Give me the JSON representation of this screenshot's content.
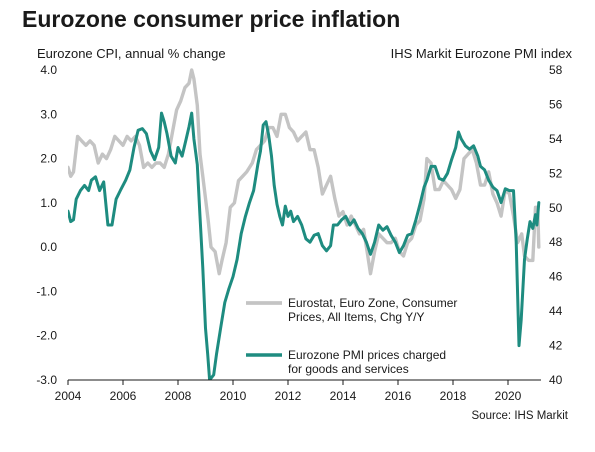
{
  "title": "Eurozone consumer price inflation",
  "source": "Source: IHS Markit",
  "colors": {
    "cpi": "#c4c4c4",
    "pmi": "#1e8c80",
    "axis": "#1a1a1a",
    "text": "#1a1a1a"
  },
  "chart_data": {
    "type": "line",
    "title": "Eurozone consumer price inflation",
    "left_axis": {
      "label": "Eurozone CPI, annual % change",
      "ylim": [
        -3.0,
        4.0
      ],
      "ticks": [
        4.0,
        3.0,
        2.0,
        1.0,
        0.0,
        -1.0,
        -2.0,
        -3.0
      ],
      "tick_labels": [
        "4.0",
        "3.0",
        "2.0",
        "1.0",
        "0.0",
        "-1.0",
        "-2.0",
        "-3.0"
      ]
    },
    "right_axis": {
      "label": "IHS Markit Eurozone PMI index",
      "ylim": [
        40,
        58
      ],
      "ticks": [
        58,
        56,
        54,
        52,
        50,
        48,
        46,
        44,
        42,
        40
      ],
      "tick_labels": [
        "58",
        "56",
        "54",
        "52",
        "50",
        "48",
        "46",
        "44",
        "42",
        "40"
      ]
    },
    "x_axis": {
      "xlim": [
        2004.0,
        2021.2
      ],
      "ticks": [
        2004,
        2006,
        2008,
        2010,
        2012,
        2014,
        2016,
        2018,
        2020
      ],
      "tick_labels": [
        "2004",
        "2006",
        "2008",
        "2010",
        "2012",
        "2014",
        "2016",
        "2018",
        "2020"
      ]
    },
    "grid": false,
    "legend_position": "bottom-right",
    "series": [
      {
        "name": "Eurostat, Euro Zone, Consumer Prices, All Items, Chg Y/Y",
        "legend_lines": [
          "Eurostat, Euro Zone, Consumer",
          "Prices, All Items, Chg Y/Y"
        ],
        "axis": "left",
        "points": [
          [
            2004.0,
            1.8
          ],
          [
            2004.1,
            1.6
          ],
          [
            2004.2,
            1.7
          ],
          [
            2004.35,
            2.5
          ],
          [
            2004.5,
            2.4
          ],
          [
            2004.65,
            2.3
          ],
          [
            2004.8,
            2.4
          ],
          [
            2004.95,
            2.3
          ],
          [
            2005.1,
            1.9
          ],
          [
            2005.25,
            2.1
          ],
          [
            2005.4,
            2.0
          ],
          [
            2005.55,
            2.2
          ],
          [
            2005.7,
            2.5
          ],
          [
            2005.85,
            2.4
          ],
          [
            2006.0,
            2.3
          ],
          [
            2006.15,
            2.5
          ],
          [
            2006.3,
            2.4
          ],
          [
            2006.45,
            2.5
          ],
          [
            2006.6,
            2.3
          ],
          [
            2006.75,
            1.8
          ],
          [
            2006.9,
            1.9
          ],
          [
            2007.05,
            1.8
          ],
          [
            2007.2,
            1.9
          ],
          [
            2007.35,
            1.9
          ],
          [
            2007.5,
            1.8
          ],
          [
            2007.65,
            2.1
          ],
          [
            2007.8,
            2.6
          ],
          [
            2007.95,
            3.1
          ],
          [
            2008.1,
            3.3
          ],
          [
            2008.25,
            3.6
          ],
          [
            2008.4,
            3.7
          ],
          [
            2008.5,
            4.0
          ],
          [
            2008.58,
            3.8
          ],
          [
            2008.7,
            3.2
          ],
          [
            2008.8,
            2.1
          ],
          [
            2008.9,
            1.6
          ],
          [
            2009.0,
            1.1
          ],
          [
            2009.1,
            0.6
          ],
          [
            2009.2,
            0.0
          ],
          [
            2009.35,
            -0.1
          ],
          [
            2009.5,
            -0.6
          ],
          [
            2009.6,
            -0.3
          ],
          [
            2009.75,
            0.1
          ],
          [
            2009.9,
            0.9
          ],
          [
            2010.05,
            1.0
          ],
          [
            2010.2,
            1.5
          ],
          [
            2010.35,
            1.6
          ],
          [
            2010.5,
            1.7
          ],
          [
            2010.7,
            1.9
          ],
          [
            2010.85,
            2.2
          ],
          [
            2011.0,
            2.3
          ],
          [
            2011.15,
            2.4
          ],
          [
            2011.3,
            2.7
          ],
          [
            2011.45,
            2.7
          ],
          [
            2011.6,
            2.5
          ],
          [
            2011.75,
            3.0
          ],
          [
            2011.9,
            3.0
          ],
          [
            2012.05,
            2.7
          ],
          [
            2012.2,
            2.6
          ],
          [
            2012.35,
            2.4
          ],
          [
            2012.5,
            2.5
          ],
          [
            2012.65,
            2.6
          ],
          [
            2012.8,
            2.2
          ],
          [
            2012.95,
            2.2
          ],
          [
            2013.1,
            1.8
          ],
          [
            2013.25,
            1.2
          ],
          [
            2013.4,
            1.4
          ],
          [
            2013.55,
            1.6
          ],
          [
            2013.7,
            1.1
          ],
          [
            2013.85,
            0.7
          ],
          [
            2014.0,
            0.8
          ],
          [
            2014.15,
            0.5
          ],
          [
            2014.3,
            0.7
          ],
          [
            2014.45,
            0.5
          ],
          [
            2014.6,
            0.3
          ],
          [
            2014.75,
            0.4
          ],
          [
            2014.9,
            -0.2
          ],
          [
            2015.0,
            -0.6
          ],
          [
            2015.15,
            -0.1
          ],
          [
            2015.3,
            0.3
          ],
          [
            2015.45,
            0.2
          ],
          [
            2015.6,
            0.1
          ],
          [
            2015.75,
            0.1
          ],
          [
            2015.9,
            0.2
          ],
          [
            2016.05,
            -0.1
          ],
          [
            2016.2,
            -0.2
          ],
          [
            2016.35,
            0.1
          ],
          [
            2016.5,
            0.2
          ],
          [
            2016.65,
            0.5
          ],
          [
            2016.8,
            0.6
          ],
          [
            2016.95,
            1.1
          ],
          [
            2017.05,
            2.0
          ],
          [
            2017.2,
            1.9
          ],
          [
            2017.35,
            1.3
          ],
          [
            2017.5,
            1.3
          ],
          [
            2017.65,
            1.5
          ],
          [
            2017.8,
            1.4
          ],
          [
            2017.95,
            1.3
          ],
          [
            2018.1,
            1.1
          ],
          [
            2018.25,
            1.3
          ],
          [
            2018.4,
            2.0
          ],
          [
            2018.55,
            2.1
          ],
          [
            2018.7,
            2.2
          ],
          [
            2018.85,
            1.9
          ],
          [
            2019.0,
            1.4
          ],
          [
            2019.15,
            1.4
          ],
          [
            2019.3,
            1.7
          ],
          [
            2019.45,
            1.2
          ],
          [
            2019.6,
            1.0
          ],
          [
            2019.75,
            0.7
          ],
          [
            2019.9,
            1.3
          ],
          [
            2020.05,
            1.2
          ],
          [
            2020.2,
            0.7
          ],
          [
            2020.35,
            0.1
          ],
          [
            2020.5,
            0.3
          ],
          [
            2020.6,
            -0.2
          ],
          [
            2020.75,
            -0.3
          ],
          [
            2020.9,
            -0.3
          ],
          [
            2021.0,
            0.9
          ],
          [
            2021.08,
            0.9
          ],
          [
            2021.12,
            0.0
          ]
        ]
      },
      {
        "name": "Eurozone PMI prices charged for goods and services",
        "legend_lines": [
          "Eurozone PMI prices charged",
          "for goods and services"
        ],
        "axis": "right",
        "points": [
          [
            2004.0,
            49.8
          ],
          [
            2004.1,
            49.2
          ],
          [
            2004.2,
            49.3
          ],
          [
            2004.3,
            50.5
          ],
          [
            2004.45,
            51.0
          ],
          [
            2004.6,
            51.3
          ],
          [
            2004.75,
            51.0
          ],
          [
            2004.85,
            51.6
          ],
          [
            2005.0,
            51.8
          ],
          [
            2005.15,
            51.0
          ],
          [
            2005.3,
            51.5
          ],
          [
            2005.45,
            49.0
          ],
          [
            2005.6,
            49.0
          ],
          [
            2005.75,
            50.5
          ],
          [
            2005.9,
            51.0
          ],
          [
            2006.1,
            51.6
          ],
          [
            2006.25,
            52.2
          ],
          [
            2006.4,
            53.5
          ],
          [
            2006.55,
            54.5
          ],
          [
            2006.7,
            54.6
          ],
          [
            2006.85,
            54.3
          ],
          [
            2007.0,
            53.3
          ],
          [
            2007.15,
            52.8
          ],
          [
            2007.3,
            53.5
          ],
          [
            2007.4,
            55.5
          ],
          [
            2007.5,
            55.0
          ],
          [
            2007.6,
            54.3
          ],
          [
            2007.75,
            53.0
          ],
          [
            2007.9,
            52.6
          ],
          [
            2008.0,
            53.5
          ],
          [
            2008.15,
            53.0
          ],
          [
            2008.3,
            54.0
          ],
          [
            2008.4,
            54.7
          ],
          [
            2008.5,
            55.5
          ],
          [
            2008.58,
            54.0
          ],
          [
            2008.7,
            52.5
          ],
          [
            2008.8,
            49.5
          ],
          [
            2008.9,
            46.5
          ],
          [
            2009.0,
            43.0
          ],
          [
            2009.08,
            41.5
          ],
          [
            2009.15,
            40.0
          ],
          [
            2009.3,
            40.3
          ],
          [
            2009.4,
            41.5
          ],
          [
            2009.55,
            43.0
          ],
          [
            2009.7,
            44.5
          ],
          [
            2009.85,
            45.3
          ],
          [
            2010.0,
            46.0
          ],
          [
            2010.15,
            47.0
          ],
          [
            2010.3,
            48.5
          ],
          [
            2010.45,
            49.5
          ],
          [
            2010.6,
            50.3
          ],
          [
            2010.75,
            51.0
          ],
          [
            2010.9,
            52.5
          ],
          [
            2011.0,
            53.3
          ],
          [
            2011.1,
            54.8
          ],
          [
            2011.2,
            55.0
          ],
          [
            2011.3,
            54.2
          ],
          [
            2011.4,
            53.0
          ],
          [
            2011.5,
            51.3
          ],
          [
            2011.6,
            50.2
          ],
          [
            2011.7,
            49.5
          ],
          [
            2011.8,
            49.0
          ],
          [
            2011.9,
            50.1
          ],
          [
            2012.0,
            49.5
          ],
          [
            2012.1,
            49.8
          ],
          [
            2012.2,
            49.2
          ],
          [
            2012.35,
            49.5
          ],
          [
            2012.5,
            49.0
          ],
          [
            2012.65,
            48.2
          ],
          [
            2012.8,
            48.0
          ],
          [
            2012.95,
            48.4
          ],
          [
            2013.1,
            48.5
          ],
          [
            2013.25,
            47.8
          ],
          [
            2013.4,
            47.5
          ],
          [
            2013.55,
            47.8
          ],
          [
            2013.65,
            49.0
          ],
          [
            2013.8,
            49.0
          ],
          [
            2013.95,
            49.3
          ],
          [
            2014.1,
            49.5
          ],
          [
            2014.25,
            49.0
          ],
          [
            2014.4,
            49.3
          ],
          [
            2014.55,
            48.8
          ],
          [
            2014.7,
            48.5
          ],
          [
            2014.85,
            48.0
          ],
          [
            2015.0,
            47.3
          ],
          [
            2015.15,
            48.0
          ],
          [
            2015.3,
            49.0
          ],
          [
            2015.45,
            48.7
          ],
          [
            2015.6,
            48.9
          ],
          [
            2015.75,
            48.4
          ],
          [
            2015.9,
            48.0
          ],
          [
            2016.05,
            47.4
          ],
          [
            2016.2,
            47.8
          ],
          [
            2016.35,
            48.4
          ],
          [
            2016.5,
            48.5
          ],
          [
            2016.65,
            49.3
          ],
          [
            2016.8,
            50.2
          ],
          [
            2016.95,
            51.2
          ],
          [
            2017.05,
            51.6
          ],
          [
            2017.2,
            52.4
          ],
          [
            2017.35,
            52.4
          ],
          [
            2017.5,
            51.7
          ],
          [
            2017.65,
            51.6
          ],
          [
            2017.8,
            52.0
          ],
          [
            2017.95,
            52.8
          ],
          [
            2018.1,
            53.5
          ],
          [
            2018.2,
            54.4
          ],
          [
            2018.3,
            54.0
          ],
          [
            2018.45,
            53.6
          ],
          [
            2018.6,
            53.4
          ],
          [
            2018.75,
            53.6
          ],
          [
            2018.9,
            53.0
          ],
          [
            2019.0,
            52.4
          ],
          [
            2019.15,
            52.2
          ],
          [
            2019.3,
            51.6
          ],
          [
            2019.45,
            51.2
          ],
          [
            2019.6,
            51.0
          ],
          [
            2019.75,
            50.3
          ],
          [
            2019.9,
            51.1
          ],
          [
            2020.05,
            51.0
          ],
          [
            2020.2,
            51.0
          ],
          [
            2020.3,
            48.0
          ],
          [
            2020.35,
            45.0
          ],
          [
            2020.4,
            42.0
          ],
          [
            2020.48,
            43.5
          ],
          [
            2020.6,
            47.0
          ],
          [
            2020.7,
            48.2
          ],
          [
            2020.8,
            49.2
          ],
          [
            2020.9,
            48.8
          ],
          [
            2021.0,
            49.6
          ],
          [
            2021.05,
            49.0
          ],
          [
            2021.12,
            50.3
          ]
        ]
      }
    ]
  }
}
